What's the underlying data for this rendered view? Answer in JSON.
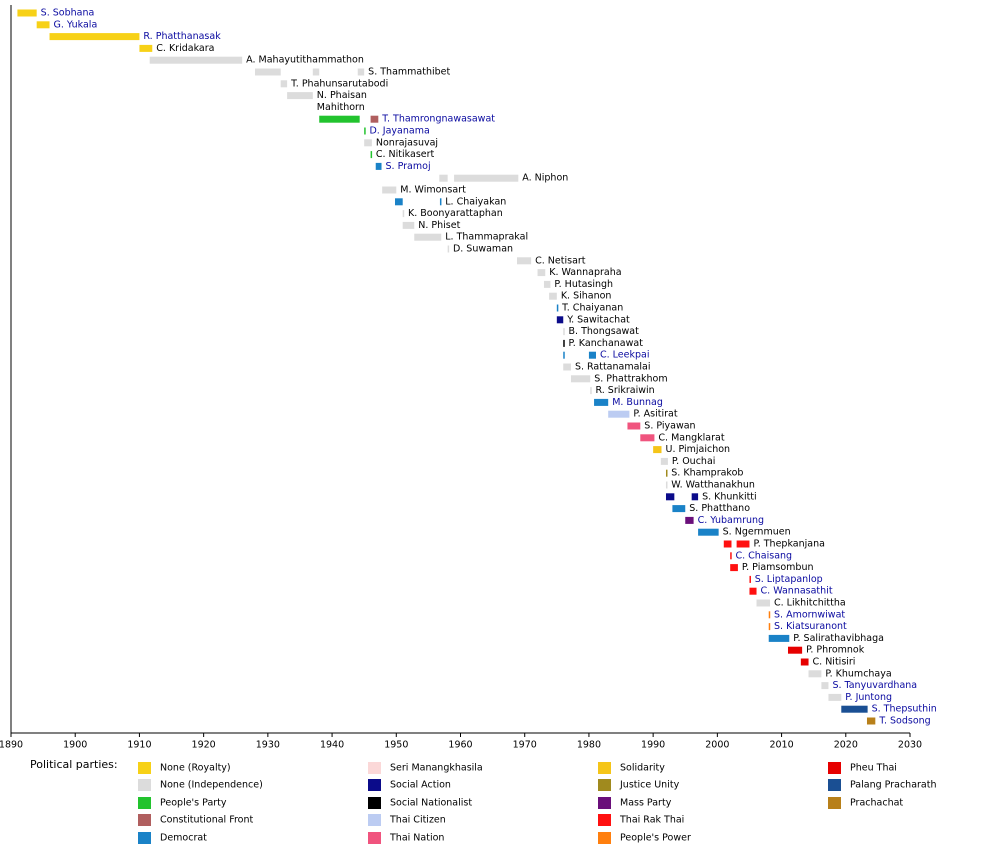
{
  "chart_data": {
    "type": "timeline",
    "legend_title": "Political parties:",
    "xlim": [
      1890,
      2030
    ],
    "xticks": [
      1890,
      1900,
      1910,
      1920,
      1930,
      1940,
      1950,
      1960,
      1970,
      1980,
      1990,
      2000,
      2010,
      2020,
      2030
    ],
    "parties": [
      {
        "name": "None (Royalty)",
        "color": "#f7d117"
      },
      {
        "name": "None (Independence)",
        "color": "#dcdcdc"
      },
      {
        "name": "People's Party",
        "color": "#22c32e"
      },
      {
        "name": "Constitutional Front",
        "color": "#b05f5f"
      },
      {
        "name": "Democrat",
        "color": "#1a82c7"
      },
      {
        "name": "Seri Manangkhasila",
        "color": "#fbd8d8"
      },
      {
        "name": "Social Action",
        "color": "#0b0b8a"
      },
      {
        "name": "Social Nationalist",
        "color": "#000000"
      },
      {
        "name": "Thai Citizen",
        "color": "#bcccf2"
      },
      {
        "name": "Thai Nation",
        "color": "#f0547e"
      },
      {
        "name": "Solidarity",
        "color": "#f5c518"
      },
      {
        "name": "Justice Unity",
        "color": "#a08a1e"
      },
      {
        "name": "Mass Party",
        "color": "#6a0f7a"
      },
      {
        "name": "Thai Rak Thai",
        "color": "#ff1010"
      },
      {
        "name": "People's Power",
        "color": "#ff7f0e"
      },
      {
        "name": "Pheu Thai",
        "color": "#e60000"
      },
      {
        "name": "Palang Pracharath",
        "color": "#1a4f93"
      },
      {
        "name": "Prachachat",
        "color": "#b8801a"
      }
    ],
    "rows": [
      {
        "label": "S. Sobhana",
        "link": true,
        "spans": [
          {
            "start": 1891,
            "end": 1894,
            "party": "None (Royalty)"
          }
        ]
      },
      {
        "label": "G. Yukala",
        "link": true,
        "spans": [
          {
            "start": 1894,
            "end": 1896,
            "party": "None (Royalty)"
          }
        ]
      },
      {
        "label": "R. Phatthanasak",
        "link": true,
        "spans": [
          {
            "start": 1896,
            "end": 1910,
            "party": "None (Royalty)"
          }
        ]
      },
      {
        "label": "C. Kridakara",
        "link": false,
        "spans": [
          {
            "start": 1910,
            "end": 1912,
            "party": "None (Royalty)"
          }
        ]
      },
      {
        "label": "A. Mahayutithammathon",
        "link": false,
        "spans": [
          {
            "start": 1911.6,
            "end": 1926,
            "party": "None (Independence)"
          }
        ]
      },
      {
        "label": "S. Thammathibet",
        "link": false,
        "spans": [
          {
            "start": 1928,
            "end": 1932,
            "party": "None (Independence)"
          },
          {
            "start": 1937,
            "end": 1938,
            "party": "None (Independence)"
          },
          {
            "start": 1944,
            "end": 1945,
            "party": "None (Independence)"
          }
        ]
      },
      {
        "label": "T. Phahunsarutabodi",
        "link": false,
        "spans": [
          {
            "start": 1932,
            "end": 1933,
            "party": "None (Independence)"
          }
        ]
      },
      {
        "label": "N. Phaisan",
        "link": false,
        "spans": [
          {
            "start": 1933,
            "end": 1937,
            "party": "None (Independence)"
          }
        ]
      },
      {
        "label": "Mahithorn",
        "link": false,
        "spans": []
      },
      {
        "label": "T. Thamrongnawasawat",
        "link": true,
        "spans": [
          {
            "start": 1938,
            "end": 1944.3,
            "party": "People's Party"
          },
          {
            "start": 1946,
            "end": 1947.2,
            "party": "Constitutional Front"
          }
        ]
      },
      {
        "label": "D. Jayanama",
        "link": true,
        "spans": [
          {
            "start": 1945,
            "end": 1945.2,
            "party": "People's Party"
          }
        ]
      },
      {
        "label": "Nonrajasuvaj",
        "link": false,
        "spans": [
          {
            "start": 1945,
            "end": 1946.2,
            "party": "None (Independence)"
          }
        ]
      },
      {
        "label": "C. Nitikasert",
        "link": false,
        "spans": [
          {
            "start": 1946,
            "end": 1946.2,
            "party": "People's Party"
          }
        ]
      },
      {
        "label": "S. Pramoj",
        "link": true,
        "spans": [
          {
            "start": 1946.8,
            "end": 1947.7,
            "party": "Democrat"
          }
        ]
      },
      {
        "label": "A. Niphon",
        "link": false,
        "spans": [
          {
            "start": 1956.7,
            "end": 1958,
            "party": "None (Independence)"
          },
          {
            "start": 1959,
            "end": 1969,
            "party": "None (Independence)"
          }
        ]
      },
      {
        "label": "M. Wimonsart",
        "link": false,
        "spans": [
          {
            "start": 1947.8,
            "end": 1950,
            "party": "None (Independence)"
          }
        ]
      },
      {
        "label": "L. Chaiyakan",
        "link": false,
        "spans": [
          {
            "start": 1949.8,
            "end": 1951,
            "party": "Democrat"
          },
          {
            "start": 1956.8,
            "end": 1957,
            "party": "Democrat"
          }
        ]
      },
      {
        "label": "K. Boonyarattaphan",
        "link": false,
        "spans": [
          {
            "start": 1951,
            "end": 1951.2,
            "party": "None (Independence)"
          }
        ]
      },
      {
        "label": "N. Phiset",
        "link": false,
        "spans": [
          {
            "start": 1951,
            "end": 1952.8,
            "party": "None (Independence)"
          }
        ]
      },
      {
        "label": "L. Thammaprakal",
        "link": false,
        "spans": [
          {
            "start": 1952.8,
            "end": 1957,
            "party": "None (Independence)"
          }
        ]
      },
      {
        "label": "D. Suwaman",
        "link": false,
        "spans": [
          {
            "start": 1958,
            "end": 1958.2,
            "party": "None (Independence)"
          }
        ]
      },
      {
        "label": "C. Netisart",
        "link": false,
        "spans": [
          {
            "start": 1968.8,
            "end": 1971,
            "party": "None (Independence)"
          }
        ]
      },
      {
        "label": "K. Wannapraha",
        "link": false,
        "spans": [
          {
            "start": 1972,
            "end": 1973.2,
            "party": "None (Independence)"
          }
        ]
      },
      {
        "label": "P. Hutasingh",
        "link": false,
        "spans": [
          {
            "start": 1973,
            "end": 1974,
            "party": "None (Independence)"
          }
        ]
      },
      {
        "label": "K. Sihanon",
        "link": false,
        "spans": [
          {
            "start": 1973.8,
            "end": 1975,
            "party": "None (Independence)"
          }
        ]
      },
      {
        "label": "T. Chaiyanan",
        "link": false,
        "spans": [
          {
            "start": 1975,
            "end": 1975.2,
            "party": "Democrat"
          }
        ]
      },
      {
        "label": "Y. Sawitachat",
        "link": false,
        "spans": [
          {
            "start": 1975,
            "end": 1976,
            "party": "Social Action"
          }
        ]
      },
      {
        "label": "B. Thongsawat",
        "link": false,
        "spans": [
          {
            "start": 1976,
            "end": 1976.2,
            "party": "None (Independence)"
          }
        ]
      },
      {
        "label": "P. Kanchanawat",
        "link": false,
        "spans": [
          {
            "start": 1976,
            "end": 1976.2,
            "party": "Social Nationalist"
          }
        ]
      },
      {
        "label": "C. Leekpai",
        "link": true,
        "spans": [
          {
            "start": 1976,
            "end": 1976.2,
            "party": "Democrat"
          },
          {
            "start": 1980,
            "end": 1981.1,
            "party": "Democrat"
          }
        ]
      },
      {
        "label": "S. Rattanamalai",
        "link": false,
        "spans": [
          {
            "start": 1976,
            "end": 1977.2,
            "party": "None (Independence)"
          }
        ]
      },
      {
        "label": "S. Phattrakhom",
        "link": false,
        "spans": [
          {
            "start": 1977.2,
            "end": 1980.2,
            "party": "None (Independence)"
          }
        ]
      },
      {
        "label": "R. Srikraiwin",
        "link": false,
        "spans": [
          {
            "start": 1980.2,
            "end": 1980.4,
            "party": "None (Independence)"
          }
        ]
      },
      {
        "label": "M. Bunnag",
        "link": true,
        "spans": [
          {
            "start": 1980.8,
            "end": 1983,
            "party": "Democrat"
          }
        ]
      },
      {
        "label": "P. Asitirat",
        "link": false,
        "spans": [
          {
            "start": 1983,
            "end": 1986.3,
            "party": "Thai Citizen"
          }
        ]
      },
      {
        "label": "S. Piyawan",
        "link": false,
        "spans": [
          {
            "start": 1986,
            "end": 1988,
            "party": "Thai Nation"
          }
        ]
      },
      {
        "label": "C. Mangklarat",
        "link": false,
        "spans": [
          {
            "start": 1988,
            "end": 1990.2,
            "party": "Thai Nation"
          }
        ]
      },
      {
        "label": "U. Pimjaichon",
        "link": false,
        "spans": [
          {
            "start": 1990,
            "end": 1991.3,
            "party": "Solidarity"
          }
        ]
      },
      {
        "label": "P. Ouchai",
        "link": false,
        "spans": [
          {
            "start": 1991.2,
            "end": 1992.3,
            "party": "None (Independence)"
          }
        ]
      },
      {
        "label": "S. Khamprakob",
        "link": false,
        "spans": [
          {
            "start": 1992,
            "end": 1992.2,
            "party": "Justice Unity"
          }
        ]
      },
      {
        "label": "W. Watthanakhun",
        "link": false,
        "spans": [
          {
            "start": 1992,
            "end": 1992.2,
            "party": "None (Independence)"
          }
        ]
      },
      {
        "label": "S. Khunkitti",
        "link": false,
        "spans": [
          {
            "start": 1992,
            "end": 1993.3,
            "party": "Social Action"
          },
          {
            "start": 1996,
            "end": 1997,
            "party": "Social Action"
          }
        ]
      },
      {
        "label": "S. Phatthano",
        "link": false,
        "spans": [
          {
            "start": 1993,
            "end": 1995,
            "party": "Democrat"
          }
        ]
      },
      {
        "label": "C. Yubamrung",
        "link": true,
        "spans": [
          {
            "start": 1995,
            "end": 1996.3,
            "party": "Mass Party"
          }
        ]
      },
      {
        "label": "S. Ngernmuen",
        "link": false,
        "spans": [
          {
            "start": 1997,
            "end": 2000.2,
            "party": "Democrat"
          }
        ]
      },
      {
        "label": "P. Thepkanjana",
        "link": false,
        "spans": [
          {
            "start": 2001,
            "end": 2002.2,
            "party": "Thai Rak Thai"
          },
          {
            "start": 2003,
            "end": 2005,
            "party": "Thai Rak Thai"
          }
        ]
      },
      {
        "label": "C. Chaisang",
        "link": true,
        "spans": [
          {
            "start": 2002,
            "end": 2002.2,
            "party": "Thai Rak Thai"
          }
        ]
      },
      {
        "label": "P. Piamsombun",
        "link": false,
        "spans": [
          {
            "start": 2002,
            "end": 2003.2,
            "party": "Thai Rak Thai"
          }
        ]
      },
      {
        "label": "S. Liptapanlop",
        "link": true,
        "spans": [
          {
            "start": 2005,
            "end": 2005.2,
            "party": "Thai Rak Thai"
          }
        ]
      },
      {
        "label": "C. Wannasathit",
        "link": true,
        "spans": [
          {
            "start": 2005,
            "end": 2006.1,
            "party": "Thai Rak Thai"
          }
        ]
      },
      {
        "label": "C. Likhitchittha",
        "link": false,
        "spans": [
          {
            "start": 2006.1,
            "end": 2008.2,
            "party": "None (Independence)"
          }
        ]
      },
      {
        "label": "S. Amornwiwat",
        "link": true,
        "spans": [
          {
            "start": 2008,
            "end": 2008.2,
            "party": "People's Power"
          }
        ]
      },
      {
        "label": "S. Kiatsuranont",
        "link": true,
        "spans": [
          {
            "start": 2008,
            "end": 2008.2,
            "party": "People's Power"
          }
        ]
      },
      {
        "label": "P. Salirathavibhaga",
        "link": false,
        "spans": [
          {
            "start": 2008,
            "end": 2011.2,
            "party": "Democrat"
          }
        ]
      },
      {
        "label": "P. Phromnok",
        "link": false,
        "spans": [
          {
            "start": 2011,
            "end": 2013.2,
            "party": "Pheu Thai"
          }
        ]
      },
      {
        "label": "C. Nitisiri",
        "link": false,
        "spans": [
          {
            "start": 2013,
            "end": 2014.2,
            "party": "Pheu Thai"
          }
        ]
      },
      {
        "label": "P. Khumchaya",
        "link": false,
        "spans": [
          {
            "start": 2014.2,
            "end": 2016.2,
            "party": "None (Independence)"
          }
        ]
      },
      {
        "label": "S. Tanyuvardhana",
        "link": true,
        "spans": [
          {
            "start": 2016.2,
            "end": 2017.3,
            "party": "None (Independence)"
          }
        ]
      },
      {
        "label": "P. Juntong",
        "link": true,
        "spans": [
          {
            "start": 2017.3,
            "end": 2019.3,
            "party": "None (Independence)"
          }
        ]
      },
      {
        "label": "S. Thepsuthin",
        "link": true,
        "spans": [
          {
            "start": 2019.3,
            "end": 2023.4,
            "party": "Palang Pracharath"
          }
        ]
      },
      {
        "label": "T. Sodsong",
        "link": true,
        "spans": [
          {
            "start": 2023.3,
            "end": 2024.6,
            "party": "Prachachat"
          }
        ]
      }
    ]
  }
}
